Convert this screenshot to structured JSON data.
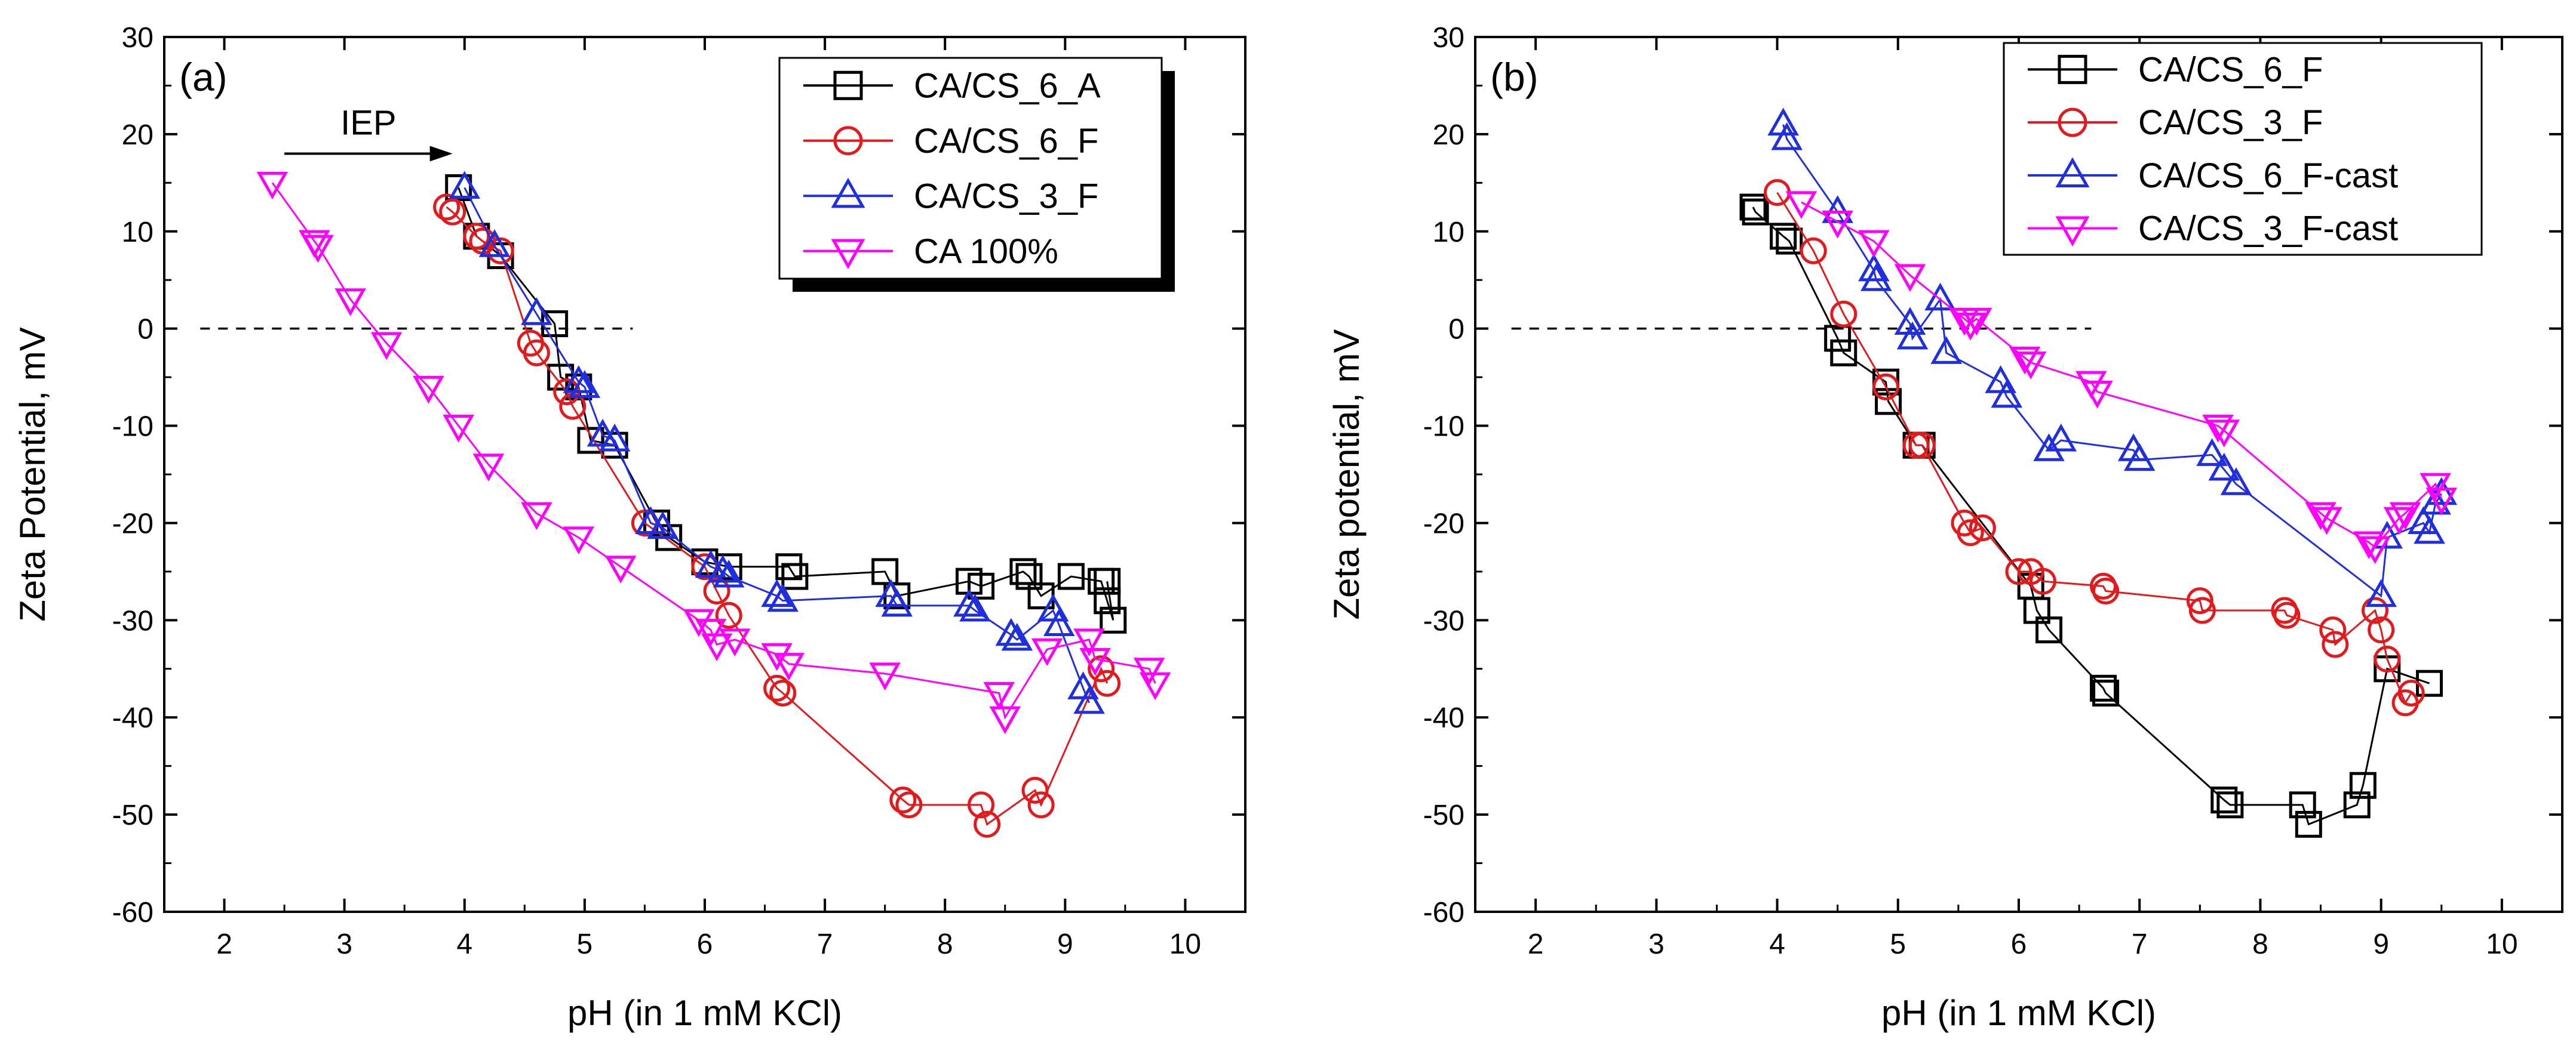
{
  "chart_data": [
    {
      "type": "scatter",
      "panel_label": "(a)",
      "xlabel": "pH (in 1 mM KCl)",
      "ylabel": "Zeta Potential, mV",
      "xlim": [
        1.5,
        10.5
      ],
      "ylim": [
        -60,
        30
      ],
      "xticks": [
        "2",
        "3",
        "4",
        "5",
        "6",
        "7",
        "8",
        "9",
        "10"
      ],
      "yticks": [
        "-60",
        "-50",
        "-40",
        "-30",
        "-20",
        "-10",
        "0",
        "10",
        "20",
        "30"
      ],
      "reference_line": {
        "y": 0,
        "x_from": 1.8,
        "x_to": 5.4
      },
      "annotation": {
        "text": "IEP",
        "arrow_from": [
          2.5,
          18
        ],
        "arrow_to": [
          3.9,
          18
        ]
      },
      "legend_position": "top-right",
      "series": [
        {
          "name": "CA/CS_6_A",
          "color": "#000000",
          "marker": "square",
          "x": [
            3.95,
            4.1,
            4.3,
            4.75,
            4.8,
            4.95,
            5.05,
            5.25,
            5.6,
            5.7,
            6.0,
            6.2,
            6.7,
            6.75,
            7.5,
            7.6,
            8.2,
            8.3,
            8.65,
            8.7,
            8.8,
            9.05,
            9.3,
            9.35,
            9.4,
            9.35
          ],
          "y": [
            14.5,
            9.5,
            7.5,
            0.5,
            -5,
            -6,
            -11.5,
            -12,
            -20,
            -21.5,
            -24,
            -24.5,
            -24.5,
            -25.5,
            -25,
            -27.5,
            -26,
            -26.5,
            -25,
            -25.5,
            -27.5,
            -25.5,
            -26,
            -28,
            -30,
            -26
          ]
        },
        {
          "name": "CA/CS_6_F",
          "color": "#e31a1c",
          "marker": "circle",
          "x": [
            3.85,
            3.9,
            4.1,
            4.15,
            4.3,
            4.55,
            4.6,
            4.85,
            4.9,
            5.5,
            6.0,
            6.1,
            6.2,
            6.6,
            6.65,
            7.65,
            7.7,
            8.3,
            8.35,
            8.75,
            8.8,
            9.3,
            9.35
          ],
          "y": [
            12.5,
            12,
            9.5,
            9,
            8,
            -1.5,
            -2.5,
            -6.5,
            -8,
            -20,
            -24.5,
            -27,
            -29.5,
            -37,
            -37.5,
            -48.5,
            -49,
            -49,
            -51,
            -47.5,
            -49,
            -35,
            -36.5
          ]
        },
        {
          "name": "CA/CS_3_F",
          "color": "#1f2fe0",
          "marker": "triangle-up",
          "x": [
            4.0,
            4.25,
            4.6,
            4.95,
            5.0,
            5.15,
            5.25,
            5.55,
            5.65,
            6.05,
            6.15,
            6.2,
            6.6,
            6.65,
            7.55,
            7.6,
            8.2,
            8.25,
            8.55,
            8.6,
            8.9,
            8.95,
            9.15,
            9.2
          ],
          "y": [
            14.5,
            8.5,
            1.5,
            -5.5,
            -6,
            -11,
            -11.5,
            -20,
            -20.5,
            -24.5,
            -25,
            -25.5,
            -27.5,
            -28,
            -27.5,
            -28.5,
            -28.5,
            -29,
            -31.5,
            -32,
            -29,
            -30.5,
            -37,
            -38.5
          ]
        },
        {
          "name": "CA 100%",
          "color": "#ff00ff",
          "marker": "triangle-down",
          "x": [
            2.4,
            2.75,
            2.78,
            3.05,
            3.35,
            3.7,
            3.95,
            4.2,
            4.6,
            4.95,
            5.3,
            5.95,
            6.05,
            6.1,
            6.25,
            6.6,
            6.7,
            7.5,
            8.45,
            8.5,
            8.85,
            9.2,
            9.25,
            9.7,
            9.75
          ],
          "y": [
            15,
            9,
            8.5,
            3,
            -1.5,
            -6,
            -10,
            -14,
            -19,
            -21.5,
            -24.5,
            -30,
            -31,
            -32.5,
            -32,
            -33.5,
            -34.5,
            -35.5,
            -37.5,
            -40,
            -33,
            -32,
            -34,
            -35,
            -36.5
          ]
        }
      ]
    },
    {
      "type": "scatter",
      "panel_label": "(b)",
      "xlabel": "pH (in 1 mM KCl)",
      "ylabel": "Zeta potential, mV",
      "xlim": [
        1.5,
        10.5
      ],
      "ylim": [
        -60,
        30
      ],
      "xticks": [
        "2",
        "3",
        "4",
        "5",
        "6",
        "7",
        "8",
        "9",
        "10"
      ],
      "yticks": [
        "-60",
        "-50",
        "-40",
        "-30",
        "-20",
        "-10",
        "0",
        "10",
        "20",
        "30"
      ],
      "reference_line": {
        "y": 0,
        "x_from": 1.8,
        "x_to": 6.6
      },
      "legend_position": "top-left",
      "series": [
        {
          "name": "CA/CS_6_F",
          "color": "#000000",
          "marker": "square",
          "x": [
            3.8,
            3.82,
            4.05,
            4.1,
            4.5,
            4.55,
            4.9,
            4.92,
            5.15,
            5.2,
            6.1,
            6.15,
            6.25,
            6.7,
            6.72,
            7.7,
            7.75,
            8.35,
            8.4,
            8.8,
            8.85,
            9.05,
            9.4
          ],
          "y": [
            12.5,
            12,
            9.5,
            9,
            -1,
            -2.5,
            -5.5,
            -7.5,
            -12,
            -12,
            -26.5,
            -29,
            -31,
            -37,
            -37.5,
            -48.5,
            -49,
            -49,
            -51,
            -49,
            -47,
            -35,
            -36.5
          ]
        },
        {
          "name": "CA/CS_3_F",
          "color": "#e31a1c",
          "marker": "circle",
          "x": [
            4.0,
            4.3,
            4.55,
            4.9,
            5.15,
            5.2,
            5.55,
            5.6,
            5.7,
            6.0,
            6.1,
            6.2,
            6.7,
            6.72,
            7.5,
            7.52,
            8.2,
            8.22,
            8.6,
            8.62,
            8.95,
            9.0,
            9.05,
            9.2,
            9.25
          ],
          "y": [
            14,
            8,
            1.5,
            -6,
            -12,
            -12,
            -20,
            -21,
            -20.5,
            -25,
            -25,
            -26,
            -26.5,
            -27,
            -28,
            -29,
            -29,
            -29.5,
            -31,
            -32.5,
            -29,
            -31,
            -34,
            -38.5,
            -37.5
          ]
        },
        {
          "name": "CA/CS_6_F-cast",
          "color": "#1f2fe0",
          "marker": "triangle-up",
          "x": [
            4.05,
            4.08,
            4.5,
            4.8,
            4.82,
            5.1,
            5.12,
            5.35,
            5.4,
            5.85,
            5.9,
            6.25,
            6.35,
            6.95,
            7.0,
            7.6,
            7.7,
            7.8,
            9.0,
            9.05,
            9.35,
            9.4,
            9.45,
            9.5
          ],
          "y": [
            21,
            19.5,
            12,
            6,
            5,
            0.5,
            -1,
            3,
            -2.5,
            -5.5,
            -7,
            -12.5,
            -11.5,
            -12.5,
            -13.5,
            -13,
            -14.5,
            -16,
            -27.5,
            -21.5,
            -20,
            -21,
            -18,
            -17
          ]
        },
        {
          "name": "CA/CS_3_F-cast",
          "color": "#ff00ff",
          "marker": "triangle-down",
          "x": [
            4.2,
            4.5,
            4.8,
            5.1,
            5.55,
            5.6,
            5.65,
            6.05,
            6.1,
            6.6,
            6.65,
            7.65,
            7.7,
            8.5,
            8.55,
            8.9,
            8.95,
            9.15,
            9.2,
            9.45,
            9.5
          ],
          "y": [
            13,
            11,
            9,
            5.5,
            1,
            0.5,
            1,
            -3,
            -3.5,
            -5.5,
            -6.5,
            -10,
            -10.5,
            -19,
            -19.5,
            -22,
            -22.5,
            -19.5,
            -19,
            -16,
            -17.5
          ]
        }
      ]
    }
  ]
}
